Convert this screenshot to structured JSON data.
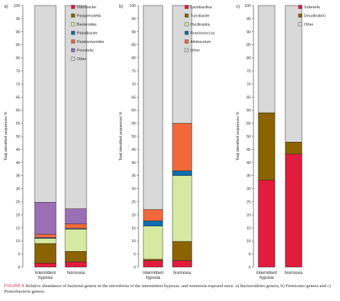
{
  "chart_data": [
    {
      "type": "bar",
      "stacked": true,
      "panel_label": "a)",
      "categories": [
        "Intermittent hypoxia",
        "Normoxia"
      ],
      "ylabel": "Total identified sequences %",
      "ylim": [
        0,
        100
      ],
      "yticks": [
        0,
        5,
        10,
        15,
        20,
        25,
        30,
        35,
        40,
        45,
        50,
        55,
        60,
        65,
        70,
        75,
        80,
        85,
        90,
        95,
        100
      ],
      "legend_position": "top-right",
      "series": [
        {
          "name": "Odoribacter",
          "color": "#e31b3d",
          "values": [
            1.5,
            2.0
          ]
        },
        {
          "name": "Paraprevotella",
          "color": "#8b6400",
          "values": [
            7.5,
            4.0
          ]
        },
        {
          "name": "Bacteroides",
          "color": "#d6e9a0",
          "values": [
            2.0,
            8.5
          ]
        },
        {
          "name": "Paludibacter",
          "color": "#0b70b0",
          "values": [
            0.3,
            0.3
          ]
        },
        {
          "name": "Parabacteroides",
          "color": "#f2683a",
          "values": [
            1.2,
            1.7
          ]
        },
        {
          "name": "Prevotella",
          "color": "#9b6fb4",
          "values": [
            12.3,
            5.8
          ]
        },
        {
          "name": "Other",
          "color": "#d9d9d9",
          "values": [
            75.2,
            77.7
          ]
        }
      ]
    },
    {
      "type": "bar",
      "stacked": true,
      "panel_label": "b)",
      "categories": [
        "Intermittent hypoxia",
        "Normoxia"
      ],
      "ylabel": "Total identified sequences %",
      "ylim": [
        0,
        100
      ],
      "yticks": [
        0,
        5,
        10,
        15,
        20,
        25,
        30,
        35,
        40,
        45,
        50,
        55,
        60,
        65,
        70,
        75,
        80,
        85,
        90,
        95,
        100
      ],
      "legend_position": "top-right",
      "series": [
        {
          "name": "Lactobacillus",
          "color": "#e31b3d",
          "values": [
            2.5,
            2.5
          ]
        },
        {
          "name": "Turicibacter",
          "color": "#8b6400",
          "values": [
            0.5,
            7.3
          ]
        },
        {
          "name": "Oscillospira",
          "color": "#d6e9a0",
          "values": [
            12.7,
            25.2
          ]
        },
        {
          "name": "Ruminococcus",
          "color": "#0b70b0",
          "values": [
            2.0,
            1.8
          ]
        },
        {
          "name": "Allobaculum",
          "color": "#f2683a",
          "values": [
            4.3,
            18.2
          ]
        },
        {
          "name": "Other",
          "color": "#d9d9d9",
          "values": [
            78.0,
            45.0
          ]
        }
      ]
    },
    {
      "type": "bar",
      "stacked": true,
      "panel_label": "c)",
      "categories": [
        "Intermittent hypoxia",
        "Normoxia"
      ],
      "ylabel": "Total identified sequences %",
      "ylim": [
        0,
        100
      ],
      "yticks": [
        0,
        5,
        10,
        15,
        20,
        25,
        30,
        35,
        40,
        45,
        50,
        55,
        60,
        65,
        70,
        75,
        80,
        85,
        90,
        95,
        100
      ],
      "legend_position": "top-right",
      "series": [
        {
          "name": "Sutterella",
          "color": "#e31b3d",
          "values": [
            33.3,
            43.2
          ]
        },
        {
          "name": "Desulfovibrio",
          "color": "#8b6400",
          "values": [
            25.7,
            4.6
          ]
        },
        {
          "name": "Other",
          "color": "#d9d9d9",
          "values": [
            41.0,
            52.2
          ]
        }
      ]
    }
  ],
  "caption": {
    "label": "FIGURE 6",
    "text": "Relative abundance of bacterial genera in the microbiota of the intermittent hypoxia- and normoxia-exposed mice. a) Bacteroidetes genera, b) Firmicutes genera and c) Proteobacteria genera."
  }
}
